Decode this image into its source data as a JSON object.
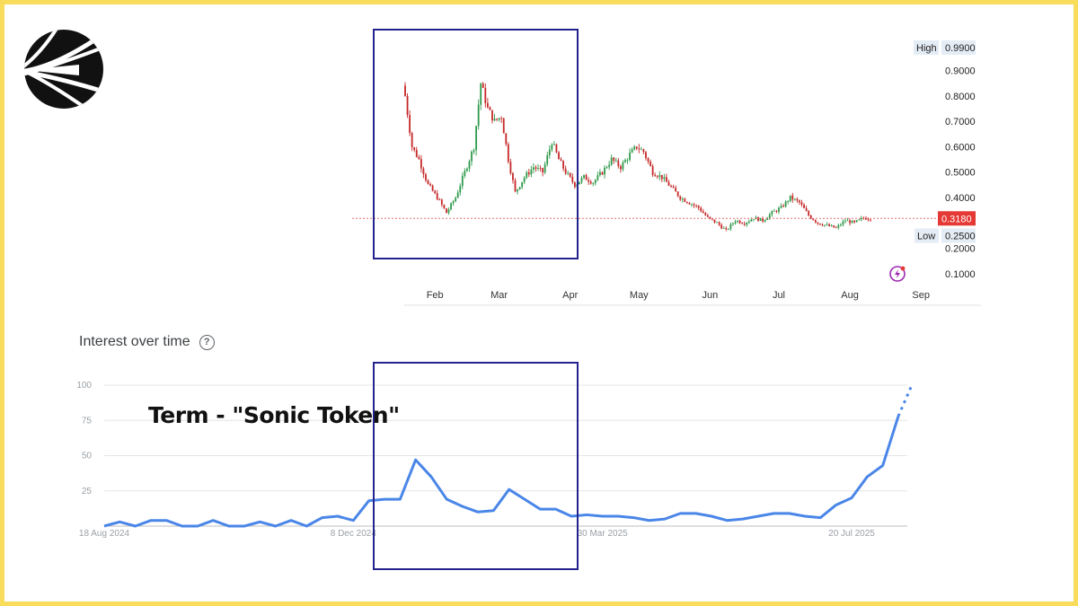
{
  "chart_data": [
    {
      "type": "candlestick",
      "ylim": [
        0.05,
        1.05
      ],
      "yticks": [
        "0.9900",
        "0.9000",
        "0.8000",
        "0.7000",
        "0.6000",
        "0.5000",
        "0.4000",
        "0.3180",
        "0.2500",
        "0.2000",
        "0.1000"
      ],
      "ytick_values": [
        0.99,
        0.9,
        0.8,
        0.7,
        0.6,
        0.5,
        0.4,
        0.318,
        0.25,
        0.2,
        0.1
      ],
      "high_label": "High",
      "high_value": "0.9900",
      "low_label": "Low",
      "low_value": "0.2500",
      "current_value": "0.3180",
      "x_labels": [
        "Feb",
        "Mar",
        "Apr",
        "May",
        "Jun",
        "Jul",
        "Aug",
        "Sep"
      ],
      "x_label_days": [
        13,
        41,
        72,
        102,
        133,
        163,
        194,
        225
      ],
      "approx_closes": [
        [
          0,
          0.8
        ],
        [
          3,
          0.6
        ],
        [
          6,
          0.55
        ],
        [
          10,
          0.45
        ],
        [
          14,
          0.4
        ],
        [
          18,
          0.34
        ],
        [
          22,
          0.4
        ],
        [
          26,
          0.5
        ],
        [
          30,
          0.6
        ],
        [
          33,
          0.85
        ],
        [
          36,
          0.75
        ],
        [
          39,
          0.7
        ],
        [
          42,
          0.72
        ],
        [
          45,
          0.55
        ],
        [
          48,
          0.42
        ],
        [
          52,
          0.48
        ],
        [
          56,
          0.52
        ],
        [
          60,
          0.5
        ],
        [
          64,
          0.62
        ],
        [
          67,
          0.55
        ],
        [
          70,
          0.5
        ],
        [
          74,
          0.45
        ],
        [
          78,
          0.48
        ],
        [
          82,
          0.46
        ],
        [
          86,
          0.5
        ],
        [
          90,
          0.55
        ],
        [
          94,
          0.52
        ],
        [
          98,
          0.57
        ],
        [
          101,
          0.6
        ],
        [
          104,
          0.58
        ],
        [
          108,
          0.5
        ],
        [
          112,
          0.48
        ],
        [
          116,
          0.44
        ],
        [
          120,
          0.4
        ],
        [
          124,
          0.38
        ],
        [
          128,
          0.36
        ],
        [
          132,
          0.32
        ],
        [
          136,
          0.3
        ],
        [
          140,
          0.27
        ],
        [
          144,
          0.31
        ],
        [
          148,
          0.3
        ],
        [
          152,
          0.32
        ],
        [
          156,
          0.31
        ],
        [
          160,
          0.34
        ],
        [
          164,
          0.36
        ],
        [
          168,
          0.4
        ],
        [
          172,
          0.38
        ],
        [
          176,
          0.33
        ],
        [
          180,
          0.3
        ],
        [
          184,
          0.29
        ],
        [
          188,
          0.28
        ],
        [
          192,
          0.31
        ],
        [
          196,
          0.3
        ],
        [
          200,
          0.32
        ],
        [
          203,
          0.318
        ]
      ],
      "up_color": "#2e9a4b",
      "down_color": "#c62828"
    },
    {
      "type": "line",
      "title": "Interest over time",
      "annotation": "Term - \"Sonic Token\"",
      "yticks": [
        100,
        75,
        50,
        25
      ],
      "ylim": [
        0,
        100
      ],
      "x_tick_labels": [
        "18 Aug 2024",
        "8 Dec 2024",
        "30 Mar 2025",
        "20 Jul 2025"
      ],
      "x_tick_index": [
        0,
        16,
        32,
        48
      ],
      "values": [
        0,
        3,
        0,
        4,
        4,
        0,
        0,
        4,
        0,
        0,
        3,
        0,
        4,
        0,
        6,
        7,
        4,
        18,
        19,
        19,
        47,
        35,
        19,
        14,
        10,
        11,
        26,
        19,
        12,
        12,
        7,
        8,
        7,
        7,
        6,
        4,
        5,
        9,
        9,
        7,
        4,
        5,
        7,
        9,
        9,
        7,
        6,
        15,
        20,
        35,
        43,
        78
      ],
      "projected_values": [
        78,
        100
      ],
      "color": "#4a86e8"
    }
  ],
  "colors": {
    "frame": "#f9dc5c",
    "highlight_box": "#23238e",
    "current_price_bg": "#e53935",
    "label_bg": "#e4ecf5",
    "logo": "#111111"
  }
}
